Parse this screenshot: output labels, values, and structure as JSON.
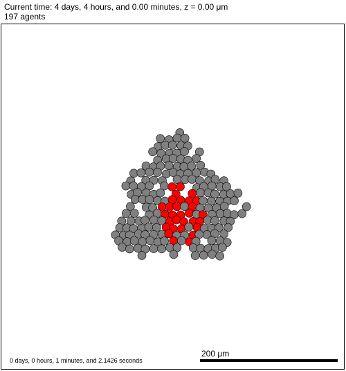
{
  "header": {
    "time_line": "Current time: 4 days, 4 hours, and 0.00 minutes, z = 0.00 μm",
    "agents_line": "197 agents"
  },
  "footer": {
    "elapsed": "0 days, 0 hours, 1 minutes, and 2.1426 seconds",
    "scale_label": "200 μm"
  },
  "colors": {
    "normal_cell": "#808080",
    "red_cell": "#ff0000",
    "outline": "#000000"
  }
}
